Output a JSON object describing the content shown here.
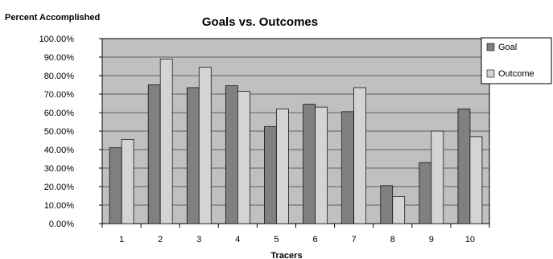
{
  "chart_data": {
    "type": "bar",
    "title": "Goals vs. Outcomes",
    "ylabel": "Percent Accomplished",
    "xlabel": "Tracers",
    "categories": [
      "1",
      "2",
      "3",
      "4",
      "5",
      "6",
      "7",
      "8",
      "9",
      "10"
    ],
    "series": [
      {
        "name": "Goal",
        "values": [
          41,
          75,
          73.5,
          74.5,
          52.5,
          64.5,
          60.5,
          20.5,
          33,
          62
        ],
        "color": "#808080"
      },
      {
        "name": "Outcome",
        "values": [
          45.5,
          89,
          84.5,
          71.5,
          62,
          63,
          73.5,
          14.5,
          50,
          47
        ],
        "color": "#d4d4d4"
      }
    ],
    "ylim": [
      0,
      100
    ],
    "yticks": [
      "0.00%",
      "10.00%",
      "20.00%",
      "30.00%",
      "40.00%",
      "50.00%",
      "60.00%",
      "70.00%",
      "80.00%",
      "90.00%",
      "100.00%"
    ],
    "grid": true,
    "plot_background": "#c0c0c0",
    "legend_position": "right"
  }
}
